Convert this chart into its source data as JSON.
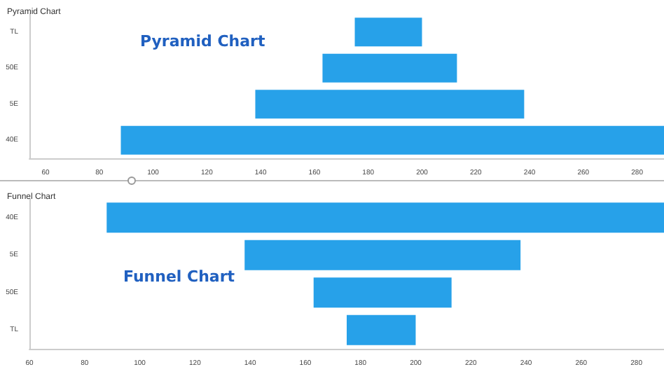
{
  "chart_data": [
    {
      "type": "bar",
      "title": "Pyramid Chart",
      "annotations": [
        "Pyramid Chart"
      ],
      "orientation": "horizontal",
      "categories": [
        "TL",
        "50E",
        "5E",
        "40E"
      ],
      "base": [
        175,
        163,
        138,
        88
      ],
      "values": [
        25,
        50,
        100,
        202
      ],
      "color": "#27a1e9",
      "xlim": [
        54,
        290
      ],
      "xticks": [
        60,
        80,
        100,
        120,
        140,
        160,
        180,
        200,
        220,
        240,
        260,
        280
      ],
      "grid": false
    },
    {
      "type": "bar",
      "title": "Funnel Chart",
      "annotations": [
        "Funnel Chart"
      ],
      "orientation": "horizontal",
      "categories": [
        "40E",
        "5E",
        "50E",
        "TL"
      ],
      "base": [
        88,
        138,
        163,
        175
      ],
      "values": [
        202,
        100,
        50,
        25
      ],
      "color": "#27a1e9",
      "xlim": [
        60,
        290
      ],
      "xticks": [
        60,
        80,
        100,
        120,
        140,
        160,
        180,
        200,
        220,
        240,
        260,
        280
      ],
      "grid": false
    }
  ]
}
